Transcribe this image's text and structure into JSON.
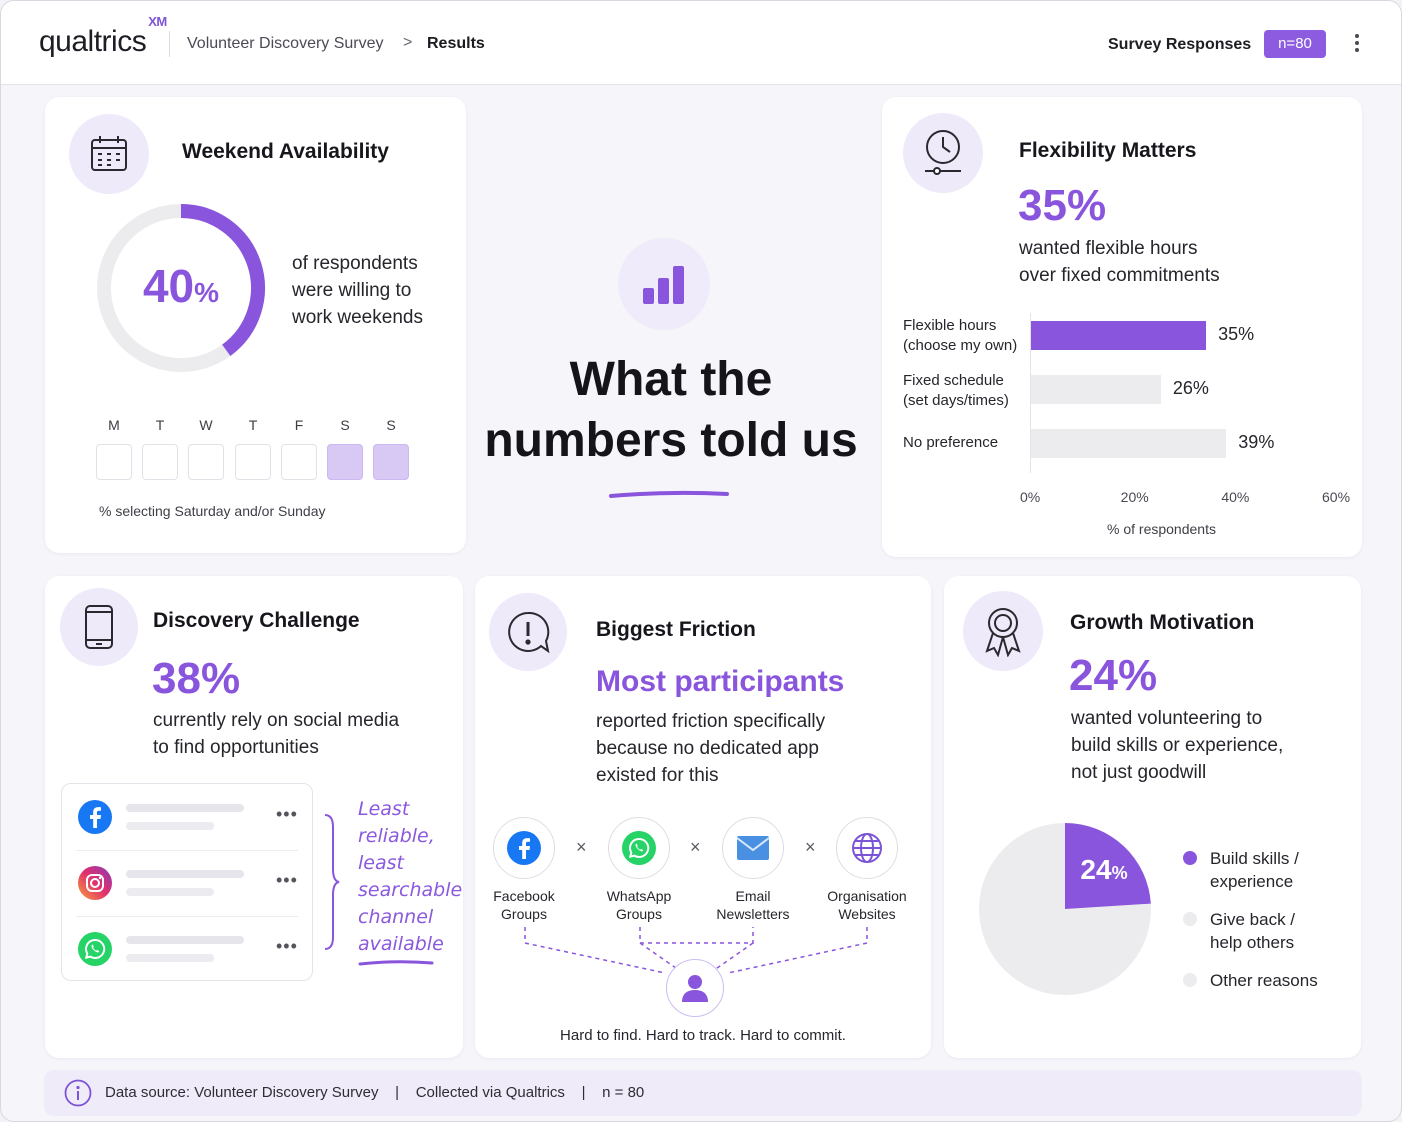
{
  "header": {
    "logo": "qualtrics",
    "logo_sup": "XM",
    "breadcrumb_survey": "Volunteer Discovery Survey",
    "breadcrumb_separator": ">",
    "breadcrumb_current": "Results",
    "responses_label": "Survey Responses",
    "responses_badge": "n=80"
  },
  "weekend": {
    "title": "Weekend Availability",
    "percent_value": 40,
    "percent_number": "40",
    "percent_sign": "%",
    "text": [
      "of respondents",
      "were willing to",
      "work weekends"
    ],
    "days": [
      "M",
      "T",
      "W",
      "T",
      "F",
      "S",
      "S"
    ],
    "days_selected": [
      false,
      false,
      false,
      false,
      false,
      true,
      true
    ],
    "caption": "% selecting Saturday and/or Sunday"
  },
  "hero": {
    "line1": "What the",
    "line2": "numbers told us"
  },
  "flexibility": {
    "title": "Flexibility Matters",
    "big_pct": "35%",
    "text": [
      "wanted flexible hours",
      "over fixed commitments"
    ],
    "xlabel": "% of respondents"
  },
  "chart_data": {
    "type": "bar",
    "orientation": "horizontal",
    "categories": [
      "Flexible hours (choose my own)",
      "Fixed schedule (set days/times)",
      "No preference"
    ],
    "category_lines": [
      [
        "Flexible hours",
        "(choose my own)"
      ],
      [
        "Fixed schedule",
        "(set days/times)"
      ],
      [
        "No preference"
      ]
    ],
    "values": [
      35,
      26,
      39
    ],
    "value_labels": [
      "35%",
      "26%",
      "39%"
    ],
    "highlight": [
      true,
      false,
      false
    ],
    "xlim": [
      0,
      60
    ],
    "xticks": [
      "0%",
      "20%",
      "40%",
      "60%"
    ],
    "xlabel": "% of respondents",
    "colors": {
      "highlight": "#8a55dd",
      "other": "#ececef"
    }
  },
  "discovery": {
    "title": "Discovery Challenge",
    "big_pct": "38%",
    "text": [
      "currently rely on social media",
      "to find opportunities"
    ],
    "social_icons": [
      "facebook-icon",
      "instagram-icon",
      "whatsapp-icon"
    ],
    "note": [
      "Least",
      "reliable,",
      "least",
      "searchable",
      "channel",
      "available"
    ]
  },
  "friction": {
    "title": "Biggest Friction",
    "headline": "Most participants",
    "text": [
      "reported friction specifically",
      "because no dedicated app",
      "existed for this"
    ],
    "channels": [
      {
        "icon": "facebook-icon",
        "label": [
          "Facebook",
          "Groups"
        ]
      },
      {
        "icon": "whatsapp-icon",
        "label": [
          "WhatsApp",
          "Groups"
        ]
      },
      {
        "icon": "email-icon",
        "label": [
          "Email",
          "Newsletters"
        ]
      },
      {
        "icon": "globe-icon",
        "label": [
          "Organisation",
          "Websites"
        ]
      }
    ],
    "times_symbol": "×",
    "caption": "Hard to find. Hard to track. Hard to commit."
  },
  "growth": {
    "title": "Growth Motivation",
    "big_pct": "24%",
    "text": [
      "wanted volunteering to",
      "build skills or experience,",
      "not just goodwill"
    ],
    "pie_value": 24,
    "pie_label_number": "24",
    "pie_label_sign": "%",
    "legend": [
      {
        "label": [
          "Build skills /",
          "experience"
        ],
        "color": "#8a55dd"
      },
      {
        "label": [
          "Give back /",
          "help others"
        ],
        "color": "#ececef"
      },
      {
        "label": [
          "Other reasons"
        ],
        "color": "#ececef"
      }
    ]
  },
  "footer": {
    "text": "Data source: Volunteer Discovery Survey    |    Collected via Qualtrics    |    n = 80"
  },
  "colors": {
    "accent": "#8a55dd",
    "accent_light": "#eeeaf9",
    "track": "#ececef"
  }
}
